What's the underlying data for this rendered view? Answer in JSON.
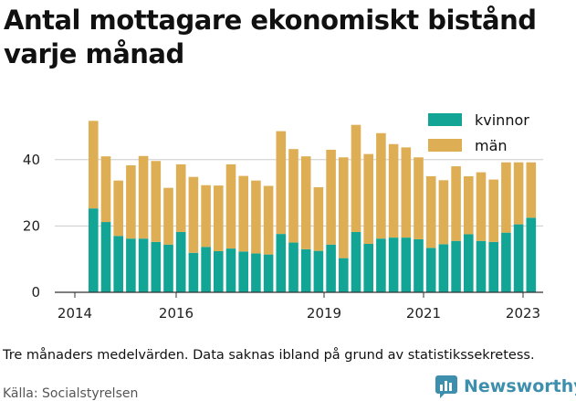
{
  "title": "Antal mottagare ekonomiskt bistånd varje månad",
  "note": "Tre månaders medelvärden. Data saknas ibland på grund av statistikssekretess.",
  "source": "Källa: Socialstyrelsen",
  "brand": {
    "name": "Newsworthy",
    "color": "#3e8fad",
    "icon": "bar-chart-logo-icon"
  },
  "colors": {
    "kvinnor": "#12a596",
    "man": "#deae54",
    "axis": "#333333",
    "grid": "#cccccc"
  },
  "chart_data": {
    "type": "bar",
    "stacked": true,
    "x_tick_labels": [
      "2014",
      "2016",
      "2019",
      "2021",
      "2023"
    ],
    "y_ticks": [
      0,
      20,
      40
    ],
    "ylim": [
      0,
      55
    ],
    "grid": true,
    "legend_position": "top-right",
    "series": [
      {
        "name": "kvinnor",
        "values": [
          25.3,
          21.2,
          17.0,
          16.2,
          16.2,
          15.2,
          14.4,
          18.2,
          11.9,
          13.7,
          12.4,
          13.2,
          12.3,
          11.7,
          11.4,
          17.6,
          15.0,
          13.0,
          12.5,
          14.4,
          10.3,
          18.2,
          14.6,
          16.2,
          16.5,
          16.5,
          16.0,
          13.4,
          14.5,
          15.5,
          17.5,
          15.5,
          15.2,
          18.0,
          20.5,
          22.5
        ]
      },
      {
        "name": "män",
        "values": [
          26.4,
          19.8,
          16.7,
          22.1,
          24.9,
          24.4,
          17.1,
          20.4,
          22.9,
          18.6,
          19.8,
          25.4,
          22.8,
          22.0,
          20.7,
          31.0,
          28.2,
          28.0,
          19.2,
          28.6,
          30.4,
          32.3,
          27.1,
          31.8,
          28.2,
          27.2,
          24.7,
          21.6,
          19.3,
          22.5,
          17.5,
          20.7,
          18.8,
          21.2,
          18.7,
          16.7
        ]
      }
    ]
  }
}
